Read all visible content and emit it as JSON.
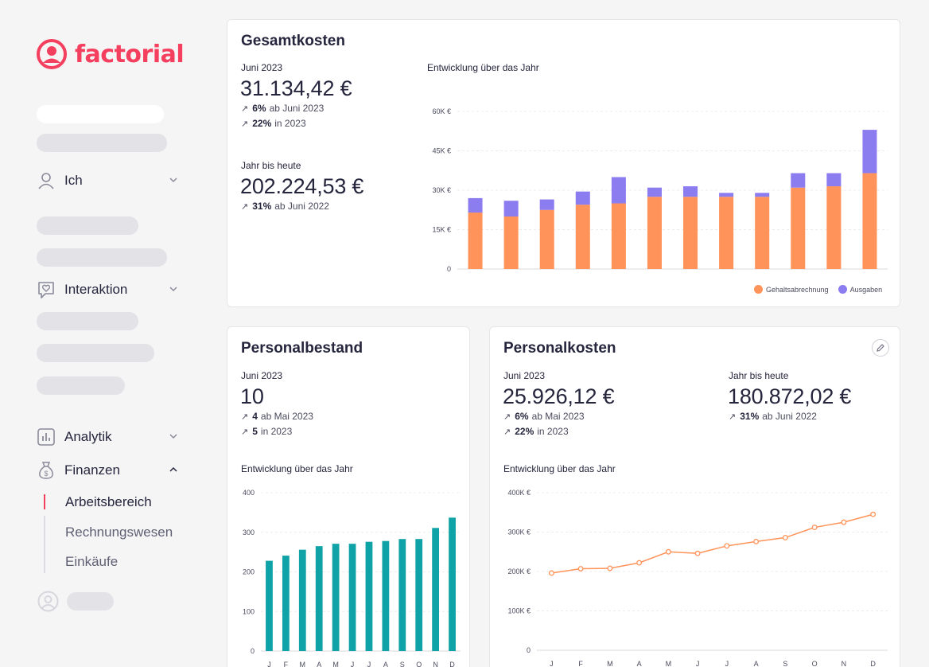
{
  "brand": {
    "name": "factorial",
    "color": "#f43f5e"
  },
  "sidebar": {
    "items": [
      {
        "label": "Ich",
        "icon": "user-icon",
        "expanded": false
      },
      {
        "label": "Interaktion",
        "icon": "heart-chat-icon",
        "expanded": false
      },
      {
        "label": "Analytik",
        "icon": "bar-chart-icon",
        "expanded": false
      },
      {
        "label": "Finanzen",
        "icon": "money-bag-icon",
        "expanded": true
      }
    ],
    "finanzen_sub": [
      "Arbeitsbereich",
      "Rechnungswesen",
      "Einkäufe"
    ],
    "active_sub": "Arbeitsbereich"
  },
  "gesamt": {
    "title": "Gesamtkosten",
    "period_label": "Juni 2023",
    "value": "31.134,42 €",
    "trend1_pct": "6%",
    "trend1_text": "ab Juni 2023",
    "trend2_pct": "22%",
    "trend2_text": "in 2023",
    "ytd_label": "Jahr bis heute",
    "ytd_value": "202.224,53 €",
    "ytd_trend_pct": "31%",
    "ytd_trend_text": "ab Juni 2022",
    "chart_title": "Entwicklung über das Jahr"
  },
  "personalbestand": {
    "title": "Personalbestand",
    "period_label": "Juni 2023",
    "value": "10",
    "trend1_pct": "4",
    "trend1_text": "ab Mai 2023",
    "trend2_pct": "5",
    "trend2_text": "in 2023",
    "chart_title": "Entwicklung über das Jahr"
  },
  "personalkosten": {
    "title": "Personalkosten",
    "period_label": "Juni 2023",
    "value": "25.926,12 €",
    "trend1_pct": "6%",
    "trend1_text": "ab Mai 2023",
    "trend2_pct": "22%",
    "trend2_text": "in 2023",
    "ytd_label": "Jahr bis heute",
    "ytd_value": "180.872,02 €",
    "ytd_trend_pct": "31%",
    "ytd_trend_text": "ab Juni 2022",
    "chart_title": "Entwicklung über das Jahr"
  },
  "chart_data": [
    {
      "type": "bar",
      "stacked": true,
      "categories": [
        "J",
        "F",
        "M",
        "A",
        "M",
        "J",
        "J",
        "A",
        "S",
        "O",
        "N",
        "D"
      ],
      "ylim": [
        0,
        60000
      ],
      "yticks": [
        "0",
        "15K €",
        "30K €",
        "45K €",
        "60K €"
      ],
      "series": [
        {
          "name": "Gehaltsabrechnung",
          "color": "#ff9359",
          "values": [
            21500,
            20000,
            22500,
            24500,
            25000,
            27500,
            27500,
            27500,
            27500,
            31000,
            31500,
            36500
          ]
        },
        {
          "name": "Ausgaben",
          "color": "#8b7cf0",
          "values": [
            5500,
            6000,
            4000,
            5000,
            10000,
            3500,
            4000,
            1500,
            1500,
            5500,
            5000,
            16500
          ]
        }
      ],
      "legend": "bottom-right",
      "grid": true
    },
    {
      "type": "bar",
      "categories": [
        "J",
        "F",
        "M",
        "A",
        "M",
        "J",
        "J",
        "A",
        "S",
        "O",
        "N",
        "D"
      ],
      "ylim": [
        0,
        400
      ],
      "yticks": [
        "0",
        "100",
        "200",
        "300",
        "400"
      ],
      "series": [
        {
          "color": "#0fa3a8",
          "values": [
            228,
            241,
            256,
            265,
            271,
            271,
            276,
            278,
            283,
            283,
            311,
            337
          ]
        }
      ],
      "grid": true
    },
    {
      "type": "line",
      "categories": [
        "J",
        "F",
        "M",
        "A",
        "M",
        "J",
        "J",
        "A",
        "S",
        "O",
        "N",
        "D"
      ],
      "ylim": [
        0,
        400000
      ],
      "yticks": [
        "0",
        "100K €",
        "200K €",
        "300K €",
        "400K €"
      ],
      "series": [
        {
          "color": "#ff9359",
          "values": [
            196000,
            207000,
            208000,
            222000,
            250000,
            246000,
            265000,
            276000,
            286000,
            312000,
            325000,
            345000
          ]
        }
      ],
      "grid": true
    }
  ]
}
